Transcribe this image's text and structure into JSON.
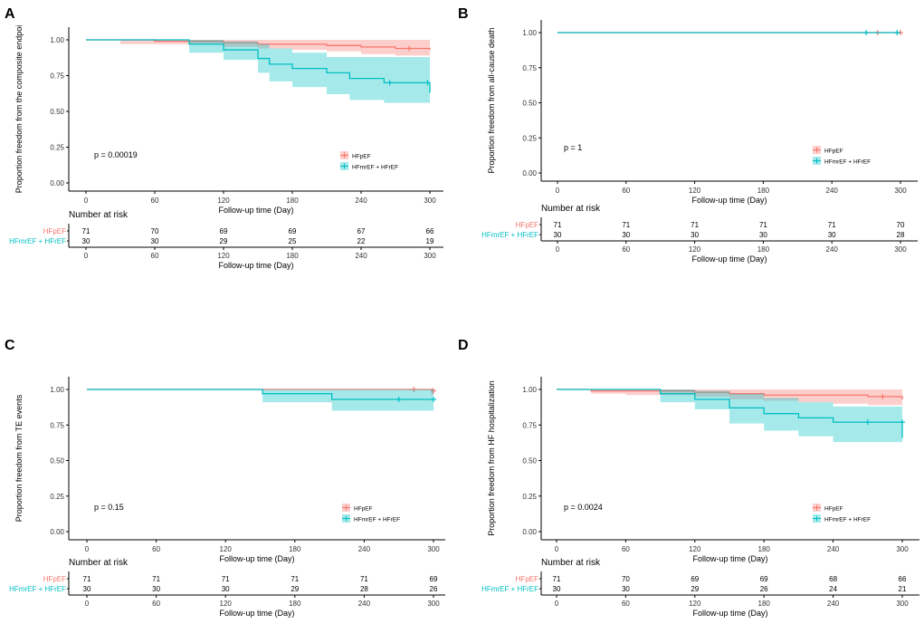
{
  "colors": {
    "hfpef": "#F8766D",
    "hfmref": "#00BFC4",
    "hfpef_band": "#F8766D",
    "hfmref_band": "#00BFC4"
  },
  "common": {
    "xlabel": "Follow-up time (Day)",
    "xticks": [
      "0",
      "60",
      "120",
      "180",
      "240",
      "300"
    ],
    "risk_title": "Number at risk",
    "legend": [
      "HFpEF",
      "HFmrEF + HFrEF"
    ],
    "strata_labels": [
      "HFpEF",
      "HFmrEF + HFrEF"
    ]
  },
  "chart_data": [
    {
      "type": "line",
      "panel_letter": "A",
      "ylabel": "Proportion freedom from the composite endpoi",
      "yticks": [
        "0.00",
        "0.25",
        "0.50",
        "0.75",
        "1.00"
      ],
      "xlim": [
        0,
        300
      ],
      "ylim": [
        0,
        1
      ],
      "p_value": "p = 0.00019",
      "legend_position": "right-middle",
      "series": [
        {
          "name": "HFpEF",
          "x": [
            0,
            30,
            60,
            120,
            150,
            180,
            210,
            240,
            270,
            300
          ],
          "y": [
            1.0,
            1.0,
            0.99,
            0.98,
            0.97,
            0.97,
            0.96,
            0.95,
            0.94,
            0.93
          ],
          "lower": [
            1.0,
            0.97,
            0.97,
            0.95,
            0.94,
            0.93,
            0.92,
            0.9,
            0.89,
            0.87
          ],
          "upper": [
            1.0,
            1.0,
            1.0,
            1.0,
            1.0,
            1.0,
            1.0,
            1.0,
            1.0,
            1.0
          ],
          "censor_x": [
            282
          ],
          "censor_y": [
            0.94
          ]
        },
        {
          "name": "HFmrEF + HFrEF",
          "x": [
            0,
            90,
            120,
            150,
            160,
            180,
            210,
            230,
            260,
            300
          ],
          "y": [
            1.0,
            0.97,
            0.93,
            0.87,
            0.83,
            0.8,
            0.77,
            0.73,
            0.7,
            0.63
          ],
          "lower": [
            1.0,
            0.91,
            0.86,
            0.77,
            0.71,
            0.67,
            0.62,
            0.58,
            0.56,
            0.56
          ],
          "upper": [
            1.0,
            1.0,
            0.99,
            0.97,
            0.94,
            0.91,
            0.88,
            0.88,
            0.88,
            0.88
          ],
          "censor_x": [
            265,
            298
          ],
          "censor_y": [
            0.7,
            0.7
          ]
        }
      ],
      "risk_table": {
        "HFpEF": [
          "71",
          "70",
          "69",
          "69",
          "67",
          "66"
        ],
        "HFmrEF + HFrEF": [
          "30",
          "30",
          "29",
          "25",
          "22",
          "19"
        ]
      }
    },
    {
      "type": "line",
      "panel_letter": "B",
      "ylabel": "Proportion freedom from all-cause death",
      "yticks": [
        "0.00",
        "0.25",
        "0.50",
        "0.75",
        "1.00"
      ],
      "xlim": [
        0,
        300
      ],
      "ylim": [
        0,
        1
      ],
      "p_value": "p = 1",
      "legend_position": "right-middle",
      "series": [
        {
          "name": "HFpEF",
          "x": [
            0,
            300
          ],
          "y": [
            1.0,
            1.0
          ],
          "lower": [
            1.0,
            1.0
          ],
          "upper": [
            1.0,
            1.0
          ],
          "censor_x": [
            280,
            300
          ],
          "censor_y": [
            1.0,
            1.0
          ]
        },
        {
          "name": "HFmrEF + HFrEF",
          "x": [
            0,
            300
          ],
          "y": [
            1.0,
            1.0
          ],
          "lower": [
            1.0,
            1.0
          ],
          "upper": [
            1.0,
            1.0
          ],
          "censor_x": [
            270,
            297
          ],
          "censor_y": [
            1.0,
            1.0
          ]
        }
      ],
      "risk_table": {
        "HFpEF": [
          "71",
          "71",
          "71",
          "71",
          "71",
          "70"
        ],
        "HFmrEF + HFrEF": [
          "30",
          "30",
          "30",
          "30",
          "30",
          "28"
        ]
      }
    },
    {
      "type": "line",
      "panel_letter": "C",
      "ylabel": "Proportion freedom from TE events",
      "yticks": [
        "0.00",
        "0.25",
        "0.50",
        "0.75",
        "1.00"
      ],
      "xlim": [
        0,
        300
      ],
      "ylim": [
        0,
        1
      ],
      "p_value": "p = 0.15",
      "legend_position": "right-bottom",
      "series": [
        {
          "name": "HFpEF",
          "x": [
            0,
            298,
            300
          ],
          "y": [
            1.0,
            1.0,
            0.99
          ],
          "lower": [
            1.0,
            0.96,
            0.96
          ],
          "upper": [
            1.0,
            1.0,
            1.0
          ],
          "censor_x": [
            283,
            300
          ],
          "censor_y": [
            1.0,
            0.99
          ]
        },
        {
          "name": "HFmrEF + HFrEF",
          "x": [
            0,
            152,
            212,
            300
          ],
          "y": [
            1.0,
            0.97,
            0.93,
            0.93
          ],
          "lower": [
            1.0,
            0.91,
            0.85,
            0.85
          ],
          "upper": [
            1.0,
            1.0,
            1.0,
            1.0
          ],
          "censor_x": [
            270,
            300
          ],
          "censor_y": [
            0.93,
            0.93
          ]
        }
      ],
      "risk_table": {
        "HFpEF": [
          "71",
          "71",
          "71",
          "71",
          "71",
          "69"
        ],
        "HFmrEF + HFrEF": [
          "30",
          "30",
          "30",
          "29",
          "28",
          "26"
        ]
      }
    },
    {
      "type": "line",
      "panel_letter": "D",
      "ylabel": "Proportion freedom from HF hospitalization",
      "yticks": [
        "0.00",
        "0.25",
        "0.50",
        "0.75",
        "1.00"
      ],
      "xlim": [
        0,
        300
      ],
      "ylim": [
        0,
        1
      ],
      "p_value": "p = 0.0024",
      "legend_position": "right-bottom",
      "series": [
        {
          "name": "HFpEF",
          "x": [
            0,
            30,
            60,
            120,
            150,
            180,
            210,
            240,
            270,
            300
          ],
          "y": [
            1.0,
            0.99,
            0.99,
            0.98,
            0.97,
            0.96,
            0.96,
            0.96,
            0.95,
            0.93
          ],
          "lower": [
            1.0,
            0.97,
            0.96,
            0.95,
            0.93,
            0.92,
            0.91,
            0.9,
            0.89,
            0.88
          ],
          "upper": [
            1.0,
            1.0,
            1.0,
            1.0,
            1.0,
            1.0,
            1.0,
            1.0,
            1.0,
            1.0
          ],
          "censor_x": [
            283
          ],
          "censor_y": [
            0.95
          ]
        },
        {
          "name": "HFmrEF + HFrEF",
          "x": [
            0,
            90,
            120,
            150,
            180,
            210,
            240,
            300
          ],
          "y": [
            1.0,
            0.97,
            0.93,
            0.87,
            0.83,
            0.8,
            0.77,
            0.66
          ],
          "lower": [
            1.0,
            0.91,
            0.86,
            0.76,
            0.71,
            0.67,
            0.63,
            0.63
          ],
          "upper": [
            1.0,
            1.0,
            0.99,
            0.97,
            0.94,
            0.91,
            0.88,
            0.88
          ],
          "censor_x": [
            270,
            300
          ],
          "censor_y": [
            0.77,
            0.77
          ]
        }
      ],
      "risk_table": {
        "HFpEF": [
          "71",
          "70",
          "69",
          "69",
          "68",
          "66"
        ],
        "HFmrEF + HFrEF": [
          "30",
          "30",
          "29",
          "26",
          "24",
          "21"
        ]
      }
    }
  ]
}
